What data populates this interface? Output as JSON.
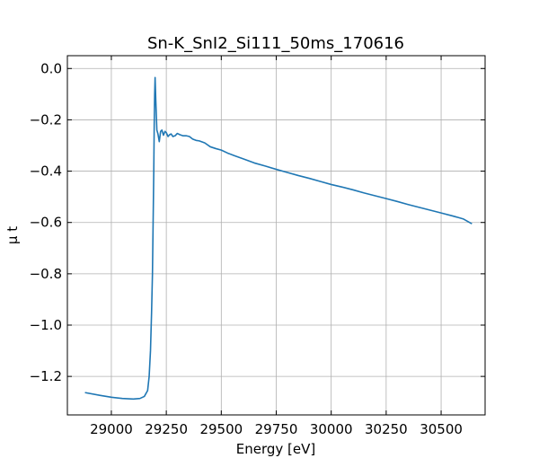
{
  "chart_data": {
    "type": "line",
    "title": "Sn-K_SnI2_Si111_50ms_170616",
    "xlabel": "Energy [eV]",
    "ylabel": "μ t",
    "xlim": [
      28800,
      30700
    ],
    "ylim": [
      -1.35,
      0.05
    ],
    "xticks": [
      29000,
      29250,
      29500,
      29750,
      30000,
      30250,
      30500
    ],
    "yticks": [
      0.0,
      -0.2,
      -0.4,
      -0.6,
      -0.8,
      -1.0,
      -1.2
    ],
    "xtick_labels": [
      "29000",
      "29250",
      "29500",
      "29750",
      "30000",
      "30250",
      "30500"
    ],
    "ytick_labels": [
      "0.0",
      "−0.2",
      "−0.4",
      "−0.6",
      "−0.8",
      "−1.0",
      "−1.2"
    ],
    "grid": true,
    "series": [
      {
        "color": "#1f77b4",
        "x": [
          28880,
          28950,
          29000,
          29050,
          29100,
          29130,
          29150,
          29165,
          29172,
          29178,
          29183,
          29187,
          29190,
          29193,
          29195,
          29197,
          29199,
          29202,
          29207,
          29212,
          29218,
          29224,
          29230,
          29237,
          29244,
          29250,
          29258,
          29265,
          29272,
          29280,
          29290,
          29300,
          29312,
          29325,
          29340,
          29355,
          29370,
          29385,
          29400,
          29425,
          29450,
          29475,
          29500,
          29530,
          29560,
          29600,
          29650,
          29700,
          29750,
          29800,
          29850,
          29900,
          29950,
          30000,
          30050,
          30100,
          30150,
          30200,
          30250,
          30300,
          30350,
          30400,
          30450,
          30500,
          30550,
          30600,
          30640
        ],
        "y": [
          -1.263,
          -1.274,
          -1.281,
          -1.286,
          -1.288,
          -1.286,
          -1.278,
          -1.255,
          -1.2,
          -1.1,
          -0.95,
          -0.8,
          -0.6,
          -0.4,
          -0.22,
          -0.1,
          -0.035,
          -0.12,
          -0.24,
          -0.255,
          -0.285,
          -0.245,
          -0.24,
          -0.26,
          -0.245,
          -0.25,
          -0.265,
          -0.258,
          -0.255,
          -0.265,
          -0.262,
          -0.253,
          -0.258,
          -0.262,
          -0.262,
          -0.265,
          -0.275,
          -0.28,
          -0.282,
          -0.29,
          -0.305,
          -0.312,
          -0.318,
          -0.33,
          -0.34,
          -0.352,
          -0.368,
          -0.38,
          -0.393,
          -0.405,
          -0.417,
          -0.428,
          -0.44,
          -0.452,
          -0.462,
          -0.473,
          -0.485,
          -0.496,
          -0.507,
          -0.518,
          -0.53,
          -0.541,
          -0.552,
          -0.563,
          -0.574,
          -0.586,
          -0.605
        ]
      }
    ]
  }
}
